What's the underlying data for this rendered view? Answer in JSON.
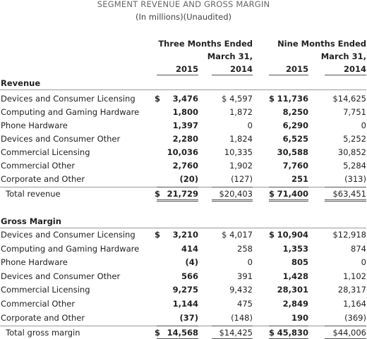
{
  "header": {
    "title": "SEGMENT REVENUE AND GROSS MARGIN",
    "subtitle": "(In millions)(Unaudited)"
  },
  "columns": {
    "groups": [
      {
        "line1": "Three Months Ended",
        "line2": "March 31,"
      },
      {
        "line1": "Nine Months Ended",
        "line2": "March 31,"
      }
    ],
    "years": [
      "2015",
      "2014",
      "2015",
      "2014"
    ]
  },
  "sections": [
    {
      "title": "Revenue",
      "rows": [
        {
          "label": "Devices and Consumer Licensing",
          "cells": [
            {
              "symbol": "$",
              "value": "3,476"
            },
            {
              "value": "$ 4,597"
            },
            {
              "symbol": "$",
              "value": "11,736"
            },
            {
              "value": "$14,625"
            }
          ]
        },
        {
          "label": "Computing and Gaming Hardware",
          "cells": [
            {
              "value": "1,800"
            },
            {
              "value": "1,872"
            },
            {
              "value": "8,250"
            },
            {
              "value": "7,751"
            }
          ]
        },
        {
          "label": "Phone Hardware",
          "cells": [
            {
              "value": "1,397"
            },
            {
              "value": "0"
            },
            {
              "value": "6,290"
            },
            {
              "value": "0"
            }
          ]
        },
        {
          "label": "Devices and Consumer Other",
          "cells": [
            {
              "value": "2,280"
            },
            {
              "value": "1,824"
            },
            {
              "value": "6,525"
            },
            {
              "value": "5,252"
            }
          ]
        },
        {
          "label": "Commercial Licensing",
          "cells": [
            {
              "value": "10,036"
            },
            {
              "value": "10,335"
            },
            {
              "value": "30,588"
            },
            {
              "value": "30,852"
            }
          ]
        },
        {
          "label": "Commercial Other",
          "cells": [
            {
              "value": "2,760"
            },
            {
              "value": "1,902"
            },
            {
              "value": "7,760"
            },
            {
              "value": "5,284"
            }
          ]
        },
        {
          "label": "Corporate and Other",
          "cells": [
            {
              "value": "(20)"
            },
            {
              "value": "(127)"
            },
            {
              "value": "251"
            },
            {
              "value": "(313)"
            }
          ]
        }
      ],
      "total": {
        "label": "Total revenue",
        "cells": [
          {
            "symbol": "$",
            "value": "21,729"
          },
          {
            "value": "$20,403"
          },
          {
            "symbol": "$",
            "value": "71,400"
          },
          {
            "value": "$63,451"
          }
        ]
      }
    },
    {
      "title": "Gross Margin",
      "rows": [
        {
          "label": "Devices and Consumer Licensing",
          "cells": [
            {
              "symbol": "$",
              "value": "3,210"
            },
            {
              "value": "$ 4,017"
            },
            {
              "symbol": "$",
              "value": "10,904"
            },
            {
              "value": "$12,918"
            }
          ]
        },
        {
          "label": "Computing and Gaming Hardware",
          "cells": [
            {
              "value": "414"
            },
            {
              "value": "258"
            },
            {
              "value": "1,353"
            },
            {
              "value": "874"
            }
          ]
        },
        {
          "label": "Phone Hardware",
          "cells": [
            {
              "value": "(4)"
            },
            {
              "value": "0"
            },
            {
              "value": "805"
            },
            {
              "value": "0"
            }
          ]
        },
        {
          "label": "Devices and Consumer Other",
          "cells": [
            {
              "value": "566"
            },
            {
              "value": "391"
            },
            {
              "value": "1,428"
            },
            {
              "value": "1,102"
            }
          ]
        },
        {
          "label": "Commercial Licensing",
          "cells": [
            {
              "value": "9,275"
            },
            {
              "value": "9,432"
            },
            {
              "value": "28,301"
            },
            {
              "value": "28,317"
            }
          ]
        },
        {
          "label": "Commercial Other",
          "cells": [
            {
              "value": "1,144"
            },
            {
              "value": "475"
            },
            {
              "value": "2,849"
            },
            {
              "value": "1,164"
            }
          ]
        },
        {
          "label": "Corporate and Other",
          "cells": [
            {
              "value": "(37)"
            },
            {
              "value": "(148)"
            },
            {
              "value": "190"
            },
            {
              "value": "(369)"
            }
          ]
        }
      ],
      "total": {
        "label": "Total gross margin",
        "cells": [
          {
            "symbol": "$",
            "value": "14,568"
          },
          {
            "value": "$14,425"
          },
          {
            "symbol": "$",
            "value": "45,830"
          },
          {
            "value": "$44,006"
          }
        ]
      }
    }
  ]
}
